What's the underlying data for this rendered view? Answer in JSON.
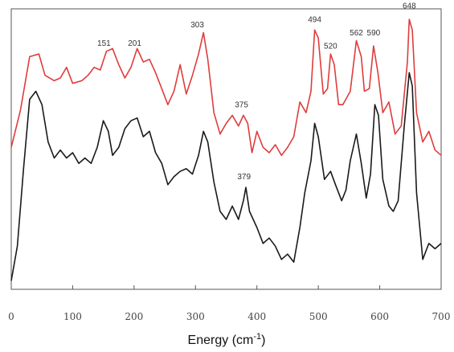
{
  "chart_data": {
    "type": "line",
    "xlabel_main": "Energy (cm",
    "xlabel_sup": "-1",
    "xlabel_close": ")",
    "xlim": [
      0,
      700
    ],
    "ylim": [
      0,
      10
    ],
    "xticks": [
      0,
      100,
      200,
      300,
      400,
      500,
      600,
      700
    ],
    "grid": false,
    "series": [
      {
        "color": "#e03c3c",
        "points": [
          [
            0,
            5.2
          ],
          [
            15,
            6.6
          ],
          [
            30,
            8.6
          ],
          [
            45,
            8.7
          ],
          [
            55,
            7.9
          ],
          [
            70,
            7.7
          ],
          [
            80,
            7.8
          ],
          [
            90,
            8.2
          ],
          [
            100,
            7.6
          ],
          [
            115,
            7.7
          ],
          [
            125,
            7.9
          ],
          [
            135,
            8.2
          ],
          [
            145,
            8.1
          ],
          [
            155,
            8.8
          ],
          [
            165,
            8.9
          ],
          [
            175,
            8.3
          ],
          [
            185,
            7.8
          ],
          [
            195,
            8.2
          ],
          [
            205,
            8.9
          ],
          [
            215,
            8.4
          ],
          [
            225,
            8.5
          ],
          [
            235,
            8.0
          ],
          [
            245,
            7.4
          ],
          [
            255,
            6.8
          ],
          [
            265,
            7.3
          ],
          [
            275,
            8.3
          ],
          [
            285,
            7.2
          ],
          [
            295,
            7.9
          ],
          [
            305,
            8.7
          ],
          [
            313,
            9.5
          ],
          [
            320,
            8.5
          ],
          [
            330,
            6.5
          ],
          [
            340,
            5.7
          ],
          [
            350,
            6.1
          ],
          [
            360,
            6.4
          ],
          [
            370,
            6.0
          ],
          [
            378,
            6.4
          ],
          [
            385,
            6.1
          ],
          [
            392,
            5.0
          ],
          [
            400,
            5.8
          ],
          [
            410,
            5.2
          ],
          [
            420,
            5.0
          ],
          [
            430,
            5.3
          ],
          [
            440,
            4.9
          ],
          [
            450,
            5.2
          ],
          [
            460,
            5.6
          ],
          [
            470,
            6.9
          ],
          [
            480,
            6.5
          ],
          [
            488,
            7.3
          ],
          [
            494,
            9.6
          ],
          [
            500,
            9.3
          ],
          [
            508,
            7.2
          ],
          [
            515,
            7.4
          ],
          [
            520,
            8.7
          ],
          [
            526,
            8.3
          ],
          [
            533,
            6.8
          ],
          [
            540,
            6.8
          ],
          [
            552,
            7.3
          ],
          [
            562,
            9.2
          ],
          [
            570,
            8.6
          ],
          [
            575,
            7.3
          ],
          [
            583,
            7.4
          ],
          [
            590,
            9.0
          ],
          [
            597,
            8.0
          ],
          [
            605,
            6.5
          ],
          [
            615,
            6.9
          ],
          [
            625,
            5.7
          ],
          [
            635,
            6.0
          ],
          [
            645,
            8.4
          ],
          [
            648,
            10.0
          ],
          [
            653,
            9.6
          ],
          [
            660,
            6.5
          ],
          [
            670,
            5.4
          ],
          [
            680,
            5.8
          ],
          [
            690,
            5.1
          ],
          [
            700,
            4.9
          ]
        ]
      },
      {
        "color": "#1a1a1a",
        "points": [
          [
            0,
            0.2
          ],
          [
            10,
            1.5
          ],
          [
            20,
            4.4
          ],
          [
            30,
            7.0
          ],
          [
            40,
            7.3
          ],
          [
            50,
            6.8
          ],
          [
            60,
            5.4
          ],
          [
            70,
            4.8
          ],
          [
            80,
            5.1
          ],
          [
            90,
            4.8
          ],
          [
            100,
            5.0
          ],
          [
            110,
            4.6
          ],
          [
            120,
            4.8
          ],
          [
            130,
            4.6
          ],
          [
            140,
            5.2
          ],
          [
            150,
            6.2
          ],
          [
            158,
            5.8
          ],
          [
            165,
            4.9
          ],
          [
            175,
            5.2
          ],
          [
            185,
            5.9
          ],
          [
            195,
            6.2
          ],
          [
            205,
            6.3
          ],
          [
            215,
            5.6
          ],
          [
            225,
            5.8
          ],
          [
            235,
            5.0
          ],
          [
            245,
            4.6
          ],
          [
            255,
            3.8
          ],
          [
            265,
            4.1
          ],
          [
            275,
            4.3
          ],
          [
            285,
            4.4
          ],
          [
            295,
            4.2
          ],
          [
            305,
            4.9
          ],
          [
            313,
            5.8
          ],
          [
            320,
            5.4
          ],
          [
            330,
            3.9
          ],
          [
            340,
            2.8
          ],
          [
            350,
            2.5
          ],
          [
            360,
            3.0
          ],
          [
            370,
            2.5
          ],
          [
            378,
            3.2
          ],
          [
            382,
            3.7
          ],
          [
            388,
            2.8
          ],
          [
            400,
            2.2
          ],
          [
            410,
            1.6
          ],
          [
            420,
            1.8
          ],
          [
            430,
            1.5
          ],
          [
            440,
            1.0
          ],
          [
            450,
            1.2
          ],
          [
            460,
            0.9
          ],
          [
            470,
            2.2
          ],
          [
            478,
            3.5
          ],
          [
            488,
            4.7
          ],
          [
            494,
            6.1
          ],
          [
            500,
            5.6
          ],
          [
            510,
            4.0
          ],
          [
            520,
            4.3
          ],
          [
            528,
            3.8
          ],
          [
            538,
            3.2
          ],
          [
            545,
            3.6
          ],
          [
            552,
            4.7
          ],
          [
            562,
            5.7
          ],
          [
            570,
            4.6
          ],
          [
            578,
            3.3
          ],
          [
            585,
            4.2
          ],
          [
            592,
            6.8
          ],
          [
            598,
            6.4
          ],
          [
            605,
            4.0
          ],
          [
            615,
            3.0
          ],
          [
            622,
            2.8
          ],
          [
            630,
            3.2
          ],
          [
            640,
            6.0
          ],
          [
            648,
            8.0
          ],
          [
            653,
            7.5
          ],
          [
            660,
            3.5
          ],
          [
            670,
            1.0
          ],
          [
            680,
            1.6
          ],
          [
            690,
            1.4
          ],
          [
            700,
            1.6
          ]
        ]
      }
    ],
    "peak_labels": [
      {
        "x": 151,
        "y": 9.0,
        "text": "151"
      },
      {
        "x": 201,
        "y": 9.0,
        "text": "201"
      },
      {
        "x": 303,
        "y": 9.7,
        "text": "303"
      },
      {
        "x": 375,
        "y": 6.7,
        "text": "375"
      },
      {
        "x": 494,
        "y": 9.9,
        "text": "494"
      },
      {
        "x": 520,
        "y": 8.9,
        "text": "520"
      },
      {
        "x": 562,
        "y": 9.4,
        "text": "562"
      },
      {
        "x": 590,
        "y": 9.4,
        "text": "590"
      },
      {
        "x": 648,
        "y": 10.4,
        "text": "648"
      },
      {
        "x": 379,
        "y": 4.0,
        "text": "379"
      }
    ]
  }
}
